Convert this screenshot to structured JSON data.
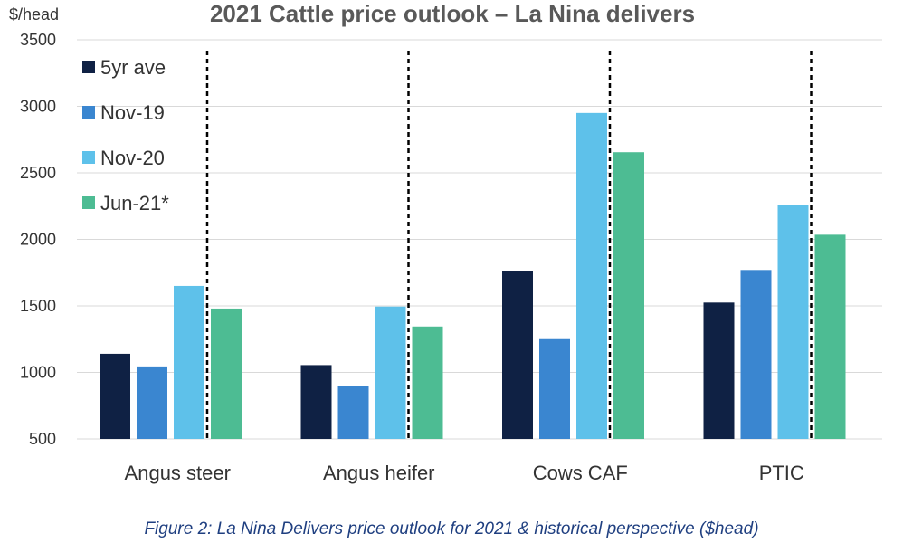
{
  "chart_data": {
    "type": "bar",
    "title": "2021 Cattle price outlook – La Nina delivers",
    "unit_label": "$/head",
    "categories": [
      "Angus steer",
      "Angus heifer",
      "Cows CAF",
      "PTIC"
    ],
    "series": [
      {
        "name": "5yr ave",
        "color": "#0f2144",
        "values": [
          1140,
          1055,
          1760,
          1525
        ]
      },
      {
        "name": "Nov-19",
        "color": "#3a86d0",
        "values": [
          1045,
          895,
          1250,
          1770
        ]
      },
      {
        "name": "Nov-20",
        "color": "#5ec1ea",
        "values": [
          1650,
          1495,
          2950,
          2260
        ]
      },
      {
        "name": "Jun-21*",
        "color": "#4dbc93",
        "values": [
          1480,
          1345,
          2655,
          2035
        ]
      }
    ],
    "yticks": [
      500,
      1000,
      1500,
      2000,
      2500,
      3000,
      3500
    ],
    "ylim": [
      500,
      3500
    ],
    "grid": true,
    "legend_position": "top-left",
    "separator_style": "dashed vertical line between Nov-20 and Jun-21* in each group"
  },
  "caption": "Figure 2: La Nina Delivers price outlook for 2021 & historical perspective ($head)"
}
